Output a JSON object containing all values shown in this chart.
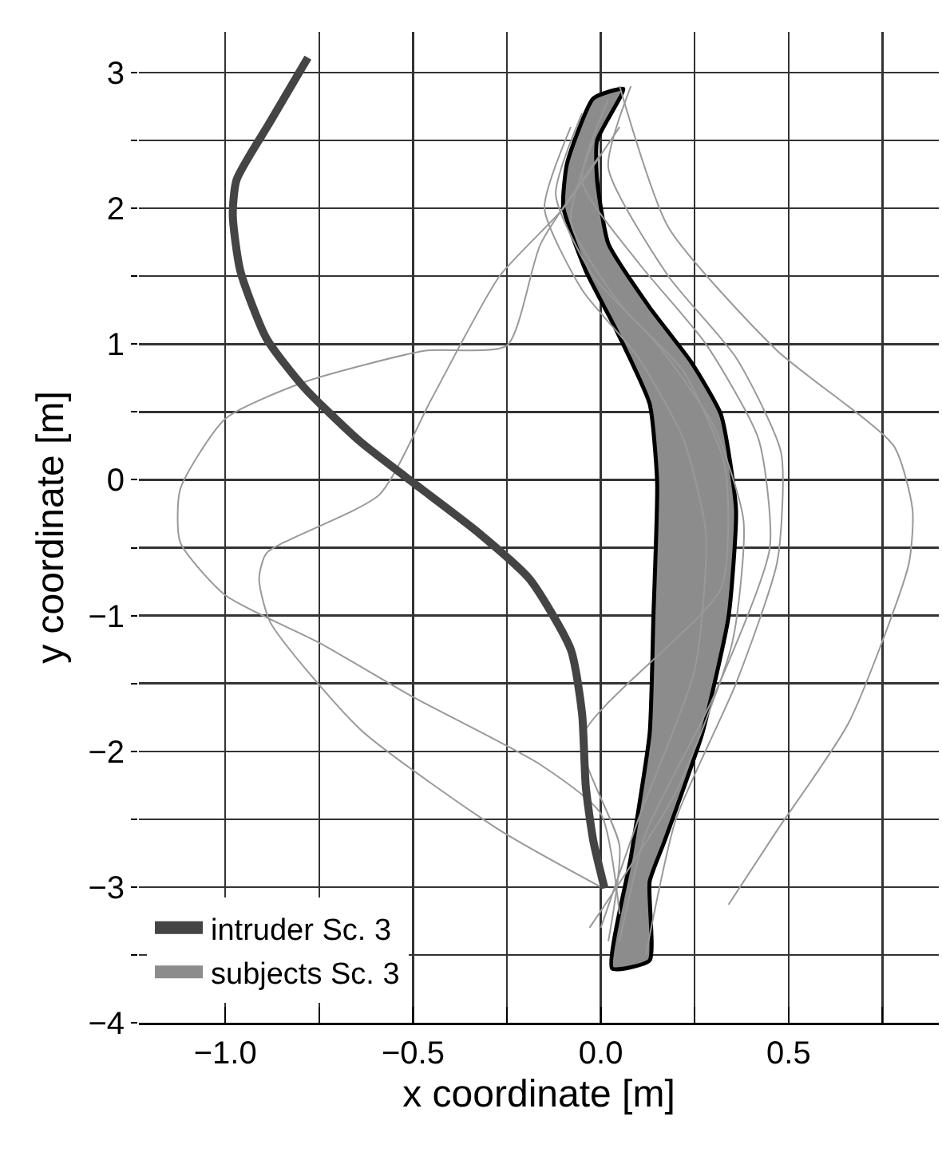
{
  "chart_data": {
    "type": "line",
    "xlabel": "x coordinate [m]",
    "ylabel": "y coordinate [m]",
    "xlim": [
      -1.23,
      0.9
    ],
    "ylim": [
      -4,
      3.3
    ],
    "xticks": [
      {
        "value": -1.0,
        "label": "−1.0"
      },
      {
        "value": -0.75,
        "label": null
      },
      {
        "value": -0.5,
        "label": "−0.5"
      },
      {
        "value": -0.25,
        "label": null
      },
      {
        "value": 0,
        "label": "0.0"
      },
      {
        "value": 0.25,
        "label": null
      },
      {
        "value": 0.5,
        "label": "0.5"
      },
      {
        "value": 0.75,
        "label": null
      }
    ],
    "yticks": [
      {
        "value": -4,
        "label": "−4"
      },
      {
        "value": -3.5,
        "label": null
      },
      {
        "value": -3,
        "label": "−3"
      },
      {
        "value": -2.5,
        "label": null
      },
      {
        "value": -2,
        "label": "−2"
      },
      {
        "value": -1.5,
        "label": null
      },
      {
        "value": -1,
        "label": "−1"
      },
      {
        "value": -0.5,
        "label": null
      },
      0,
      {
        "value": 0.5,
        "label": null
      },
      1,
      {
        "value": 1.5,
        "label": null
      },
      2,
      {
        "value": 2.5,
        "label": null
      },
      3
    ],
    "grid": true,
    "legend": "bottom left",
    "series": [
      {
        "type": "area",
        "name": "subjects Sc. 3",
        "color": "#8c8c8c",
        "x": [
          -0.02,
          -0.09,
          -0.1,
          -0.04,
          0.04,
          0.13,
          0.15,
          0.14,
          0.13,
          0.08,
          0.03,
          0.13,
          0.13,
          0.17,
          0.27,
          0.34,
          0.36,
          0.32,
          0.24,
          0.13,
          0.02,
          -0.01,
          -0.01,
          0.06,
          -0.02
        ],
        "values": [
          2.81,
          2.33,
          2.01,
          1.54,
          1.11,
          0.56,
          -0.02,
          -1.01,
          -1.87,
          -2.78,
          -3.6,
          -3.54,
          -2.96,
          -2.66,
          -1.87,
          -1.01,
          -0.22,
          0.48,
          0.87,
          1.27,
          1.74,
          2.21,
          2.5,
          2.88,
          2.81
        ]
      },
      {
        "type": "line",
        "color": "#999999",
        "x": [
          0.0,
          -0.16,
          -0.25,
          -0.47,
          -0.79,
          -1.0,
          -1.12,
          -1.12,
          -1.0,
          -0.75,
          -0.5,
          -0.16,
          0.0,
          0.05
        ],
        "values": [
          2.4,
          1.74,
          0.99,
          0.95,
          0.72,
          0.45,
          -0.07,
          -0.46,
          -0.85,
          -1.2,
          -1.6,
          -2.1,
          -2.46,
          -3.2
        ]
      },
      {
        "type": "line",
        "color": "#999999",
        "x": [
          0.05,
          -0.1,
          -0.27,
          -0.45,
          -0.59,
          -0.89,
          -0.91,
          -0.88,
          -0.64,
          -0.27,
          0.0
        ],
        "values": [
          2.6,
          2.0,
          1.5,
          0.6,
          -0.11,
          -0.54,
          -0.73,
          -1.05,
          -1.84,
          -2.58,
          -3.0
        ]
      },
      {
        "type": "line",
        "color": "#999999",
        "x": [
          0.05,
          0.18,
          0.47,
          0.78,
          0.83,
          0.82,
          0.66,
          0.47,
          0.34
        ],
        "values": [
          2.9,
          1.86,
          0.95,
          0.25,
          -0.22,
          -0.62,
          -1.79,
          -2.58,
          -3.13
        ]
      },
      {
        "type": "line",
        "color": "#999999",
        "x": [
          -0.05,
          -0.12,
          -0.02,
          0.15,
          0.3,
          0.38,
          0.35,
          0.2,
          -0.03
        ],
        "values": [
          2.7,
          2.1,
          1.5,
          1.0,
          0.4,
          -0.3,
          -1.2,
          -2.3,
          -3.3
        ]
      },
      {
        "type": "line",
        "color": "#999999",
        "x": [
          0.02,
          -0.05,
          0.1,
          0.28,
          0.42,
          0.45,
          0.3,
          0.12,
          0.05
        ],
        "values": [
          2.8,
          2.2,
          1.6,
          1.0,
          0.3,
          -0.5,
          -1.6,
          -2.6,
          -3.4
        ]
      },
      {
        "type": "line",
        "color": "#999999",
        "x": [
          -0.08,
          -0.15,
          -0.05,
          0.1,
          0.22,
          0.28,
          0.25,
          0.1,
          0.0
        ],
        "values": [
          2.6,
          2.0,
          1.4,
          0.9,
          0.3,
          -0.4,
          -1.4,
          -2.5,
          -3.3
        ]
      },
      {
        "type": "line",
        "color": "#999999",
        "x": [
          0.08,
          0.02,
          0.18,
          0.36,
          0.48,
          0.47,
          0.36,
          0.2,
          0.12
        ],
        "values": [
          2.9,
          2.3,
          1.5,
          0.9,
          0.2,
          -0.6,
          -1.5,
          -2.5,
          -3.5
        ]
      },
      {
        "type": "line",
        "color": "#999999",
        "x": [
          -0.02,
          -0.08,
          0.05,
          0.22,
          0.33,
          0.32,
          -0.05,
          0.05,
          0.02
        ],
        "values": [
          2.5,
          1.9,
          1.3,
          0.8,
          0.1,
          -0.8,
          -1.9,
          -2.7,
          -3.4
        ]
      },
      {
        "name": "intruder Sc. 3",
        "color": "#444444",
        "x": [
          -0.78,
          -0.88,
          -0.97,
          -0.98,
          -0.96,
          -0.89,
          -0.79,
          -0.64,
          -0.5,
          -0.33,
          -0.19,
          -0.08,
          -0.05,
          -0.04,
          -0.02,
          0.01
        ],
        "values": [
          3.11,
          2.64,
          2.21,
          1.95,
          1.54,
          1.04,
          0.68,
          0.28,
          -0.02,
          -0.38,
          -0.73,
          -1.25,
          -1.72,
          -2.26,
          -2.66,
          -3.01
        ]
      }
    ]
  }
}
